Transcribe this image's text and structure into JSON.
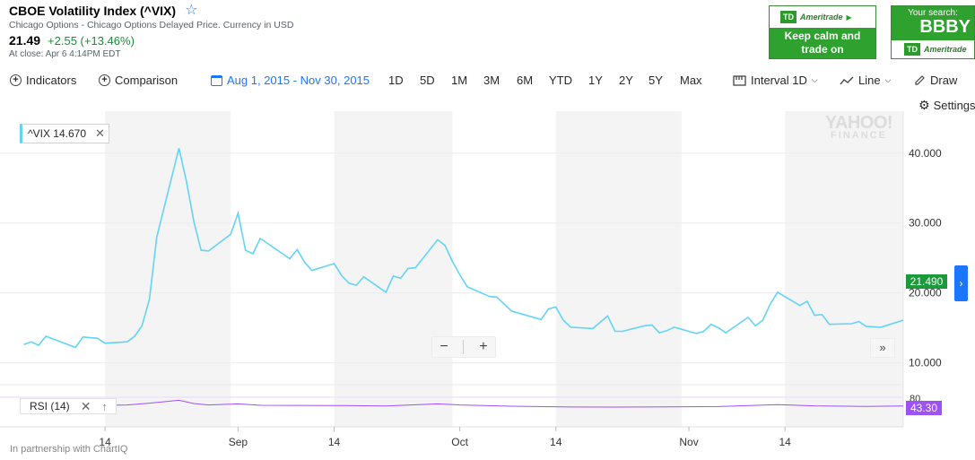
{
  "quote": {
    "title": "CBOE Volatility Index (^VIX)",
    "subtitle": "Chicago Options - Chicago Options Delayed Price. Currency in USD",
    "price": "21.49",
    "change": "+2.55 (+13.46%)",
    "close_time": "At close: Apr 6 4:14PM EDT"
  },
  "ads": {
    "ad1_logo": "TD",
    "ad1_brand": "Ameritrade",
    "ad1_text_line1": "Keep calm and",
    "ad1_text_line2": "trade on",
    "ad2_label": "Your search:",
    "ad2_symbol": "BBBY",
    "ad2_logo": "TD",
    "ad2_brand": "Ameritrade"
  },
  "toolbar": {
    "indicators": "Indicators",
    "comparison": "Comparison",
    "date_range": "Aug 1, 2015 - Nov 30, 2015",
    "ranges": [
      "1D",
      "5D",
      "1M",
      "3M",
      "6M",
      "YTD",
      "1Y",
      "2Y",
      "5Y",
      "Max"
    ],
    "interval": "Interval 1D",
    "line": "Line",
    "draw": "Draw",
    "settings": "Settings"
  },
  "watermark": {
    "line1": "YAHOO!",
    "line2": "FINANCE"
  },
  "legend": {
    "label": "^VIX 14.670"
  },
  "price_tag": "21.490",
  "rsi": {
    "label": "RSI (14)",
    "value": "43.30",
    "axis_tick": "80"
  },
  "footer": {
    "partnership": "In partnership with ChartIQ"
  },
  "colors": {
    "line": "#63d3f6",
    "rsi_line": "#9e51f6",
    "accent_blue": "#1b76ff",
    "up_green": "#1a8d39",
    "price_tag": "#1a9a3a",
    "weekend_shade": "#f4f4f4"
  },
  "chart_data": {
    "type": "line",
    "title": "",
    "x_range": [
      "2015-08-01",
      "2015-11-30"
    ],
    "ylim": [
      7,
      46
    ],
    "y_ticks": [
      10,
      20,
      30,
      40
    ],
    "y_tick_labels": [
      "10.000",
      "20.000",
      "30.000",
      "40.000"
    ],
    "x_tick_labels": [
      {
        "date": "2015-08-14",
        "label": "14"
      },
      {
        "date": "2015-09-01",
        "label": "Sep"
      },
      {
        "date": "2015-09-14",
        "label": "14"
      },
      {
        "date": "2015-10-01",
        "label": "Oct"
      },
      {
        "date": "2015-10-14",
        "label": "14"
      },
      {
        "date": "2015-11-01",
        "label": "Nov"
      },
      {
        "date": "2015-11-14",
        "label": "14"
      }
    ],
    "shaded_months": [
      [
        "2015-08-14",
        "2015-08-31"
      ],
      [
        "2015-09-14",
        "2015-09-30"
      ],
      [
        "2015-10-14",
        "2015-10-31"
      ],
      [
        "2015-11-14",
        "2015-11-30"
      ]
    ],
    "series": [
      {
        "values": [
          [
            "2015-08-03",
            12.6
          ],
          [
            "2015-08-04",
            13.0
          ],
          [
            "2015-08-05",
            12.5
          ],
          [
            "2015-08-06",
            13.8
          ],
          [
            "2015-08-07",
            13.4
          ],
          [
            "2015-08-10",
            12.2
          ],
          [
            "2015-08-11",
            13.7
          ],
          [
            "2015-08-12",
            13.6
          ],
          [
            "2015-08-13",
            13.5
          ],
          [
            "2015-08-14",
            12.8
          ],
          [
            "2015-08-17",
            13.0
          ],
          [
            "2015-08-18",
            13.8
          ],
          [
            "2015-08-19",
            15.3
          ],
          [
            "2015-08-20",
            19.1
          ],
          [
            "2015-08-21",
            28.0
          ],
          [
            "2015-08-24",
            40.7
          ],
          [
            "2015-08-25",
            36.0
          ],
          [
            "2015-08-26",
            30.3
          ],
          [
            "2015-08-27",
            26.1
          ],
          [
            "2015-08-28",
            26.0
          ],
          [
            "2015-08-31",
            28.4
          ],
          [
            "2015-09-01",
            31.4
          ],
          [
            "2015-09-02",
            26.1
          ],
          [
            "2015-09-03",
            25.6
          ],
          [
            "2015-09-04",
            27.8
          ],
          [
            "2015-09-08",
            24.9
          ],
          [
            "2015-09-09",
            26.2
          ],
          [
            "2015-09-10",
            24.4
          ],
          [
            "2015-09-11",
            23.2
          ],
          [
            "2015-09-14",
            24.2
          ],
          [
            "2015-09-15",
            22.5
          ],
          [
            "2015-09-16",
            21.4
          ],
          [
            "2015-09-17",
            21.1
          ],
          [
            "2015-09-18",
            22.3
          ],
          [
            "2015-09-21",
            20.1
          ],
          [
            "2015-09-22",
            22.4
          ],
          [
            "2015-09-23",
            22.1
          ],
          [
            "2015-09-24",
            23.5
          ],
          [
            "2015-09-25",
            23.6
          ],
          [
            "2015-09-28",
            27.6
          ],
          [
            "2015-09-29",
            26.8
          ],
          [
            "2015-09-30",
            24.5
          ],
          [
            "2015-10-01",
            22.6
          ],
          [
            "2015-10-02",
            20.9
          ],
          [
            "2015-10-05",
            19.5
          ],
          [
            "2015-10-06",
            19.4
          ],
          [
            "2015-10-07",
            18.4
          ],
          [
            "2015-10-08",
            17.4
          ],
          [
            "2015-10-09",
            17.1
          ],
          [
            "2015-10-12",
            16.2
          ],
          [
            "2015-10-13",
            17.7
          ],
          [
            "2015-10-14",
            18.0
          ],
          [
            "2015-10-15",
            16.1
          ],
          [
            "2015-10-16",
            15.1
          ],
          [
            "2015-10-19",
            14.9
          ],
          [
            "2015-10-20",
            15.8
          ],
          [
            "2015-10-21",
            16.7
          ],
          [
            "2015-10-22",
            14.5
          ],
          [
            "2015-10-23",
            14.5
          ],
          [
            "2015-10-26",
            15.3
          ],
          [
            "2015-10-27",
            15.4
          ],
          [
            "2015-10-28",
            14.3
          ],
          [
            "2015-10-29",
            14.6
          ],
          [
            "2015-10-30",
            15.1
          ],
          [
            "2015-11-02",
            14.2
          ],
          [
            "2015-11-03",
            14.5
          ],
          [
            "2015-11-04",
            15.5
          ],
          [
            "2015-11-05",
            15.0
          ],
          [
            "2015-11-06",
            14.3
          ],
          [
            "2015-11-09",
            16.5
          ],
          [
            "2015-11-10",
            15.3
          ],
          [
            "2015-11-11",
            16.1
          ],
          [
            "2015-11-12",
            18.4
          ],
          [
            "2015-11-13",
            20.1
          ],
          [
            "2015-11-16",
            18.2
          ],
          [
            "2015-11-17",
            18.8
          ],
          [
            "2015-11-18",
            16.8
          ],
          [
            "2015-11-19",
            16.9
          ],
          [
            "2015-11-20",
            15.5
          ],
          [
            "2015-11-23",
            15.6
          ],
          [
            "2015-11-24",
            15.9
          ],
          [
            "2015-11-25",
            15.2
          ],
          [
            "2015-11-27",
            15.1
          ],
          [
            "2015-11-30",
            16.1
          ]
        ]
      }
    ],
    "rsi_series": {
      "ylim": [
        0,
        100
      ],
      "values": [
        [
          "2015-08-03",
          48
        ],
        [
          "2015-08-10",
          47
        ],
        [
          "2015-08-17",
          52
        ],
        [
          "2015-08-20",
          62
        ],
        [
          "2015-08-24",
          78
        ],
        [
          "2015-08-26",
          60
        ],
        [
          "2015-08-28",
          52
        ],
        [
          "2015-09-01",
          58
        ],
        [
          "2015-09-04",
          50
        ],
        [
          "2015-09-14",
          49
        ],
        [
          "2015-09-21",
          46
        ],
        [
          "2015-09-28",
          58
        ],
        [
          "2015-10-01",
          52
        ],
        [
          "2015-10-08",
          45
        ],
        [
          "2015-10-15",
          41
        ],
        [
          "2015-10-22",
          40
        ],
        [
          "2015-10-29",
          41
        ],
        [
          "2015-11-05",
          43
        ],
        [
          "2015-11-13",
          54
        ],
        [
          "2015-11-18",
          47
        ],
        [
          "2015-11-25",
          44
        ],
        [
          "2015-11-30",
          46
        ]
      ]
    }
  }
}
